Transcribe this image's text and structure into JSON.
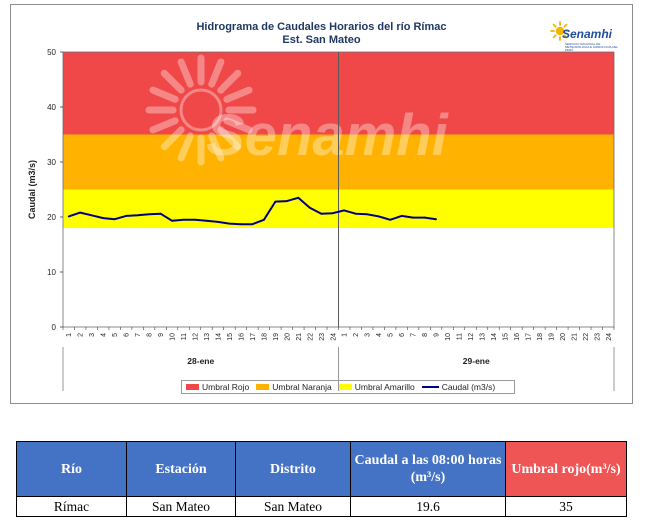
{
  "chart_data": {
    "type": "line",
    "title": "Hidrograma  de Caudales Horarios  del río Rímac",
    "subtitle": "Est. San Mateo",
    "ylabel": "Caudal (m3/s)",
    "ylim": [
      0,
      50
    ],
    "yticks": [
      "0",
      "10",
      "20",
      "30",
      "40",
      "50"
    ],
    "x_tick_labels": [
      "1",
      "2",
      "3",
      "4",
      "5",
      "6",
      "7",
      "8",
      "9",
      "10",
      "11",
      "12",
      "13",
      "14",
      "15",
      "16",
      "17",
      "18",
      "19",
      "20",
      "21",
      "22",
      "23",
      "24",
      "1",
      "2",
      "3",
      "4",
      "5",
      "6",
      "7",
      "8",
      "9",
      "10",
      "11",
      "12",
      "13",
      "14",
      "15",
      "16",
      "17",
      "18",
      "19",
      "20",
      "21",
      "22",
      "23",
      "24"
    ],
    "day_labels": [
      "28-ene",
      "29-ene"
    ],
    "thresholds": [
      {
        "name": "Umbral Rojo",
        "from": 35,
        "to": 50,
        "color": "#f04848"
      },
      {
        "name": "Umbral Naranja",
        "from": 25,
        "to": 35,
        "color": "#ffb200"
      },
      {
        "name": "Umbral Amarillo",
        "from": 18,
        "to": 25,
        "color": "#ffff00"
      }
    ],
    "series": [
      {
        "name": "Caudal (m3/s)",
        "color": "#000080",
        "values": [
          20.1,
          20.8,
          20.3,
          19.8,
          19.6,
          20.2,
          20.3,
          20.5,
          20.6,
          19.3,
          19.5,
          19.5,
          19.3,
          19.1,
          18.8,
          18.7,
          18.7,
          19.5,
          22.8,
          22.9,
          23.5,
          21.7,
          20.6,
          20.7,
          21.2,
          20.6,
          20.5,
          20.1,
          19.5,
          20.2,
          19.9,
          19.9,
          19.6
        ]
      }
    ],
    "grid": false,
    "legend_position": "bottom"
  },
  "watermark": "Senamhi",
  "logo": {
    "name": "Senamhi",
    "tagline": "SERVICIO NACIONAL DE METEOROLOGÍA E HIDROLOGÍA DEL PERÚ"
  },
  "table": {
    "headers": [
      "Río",
      "Estación",
      "Distrito",
      "Caudal a las 08:00 horas (m³/s)",
      "Umbral rojo(m³/s)"
    ],
    "header_colors": [
      "#4472c4",
      "#4472c4",
      "#4472c4",
      "#4472c4",
      "#ef5555"
    ],
    "row": [
      "Rímac",
      "San Mateo",
      "San Mateo",
      "19.6",
      "35"
    ]
  }
}
